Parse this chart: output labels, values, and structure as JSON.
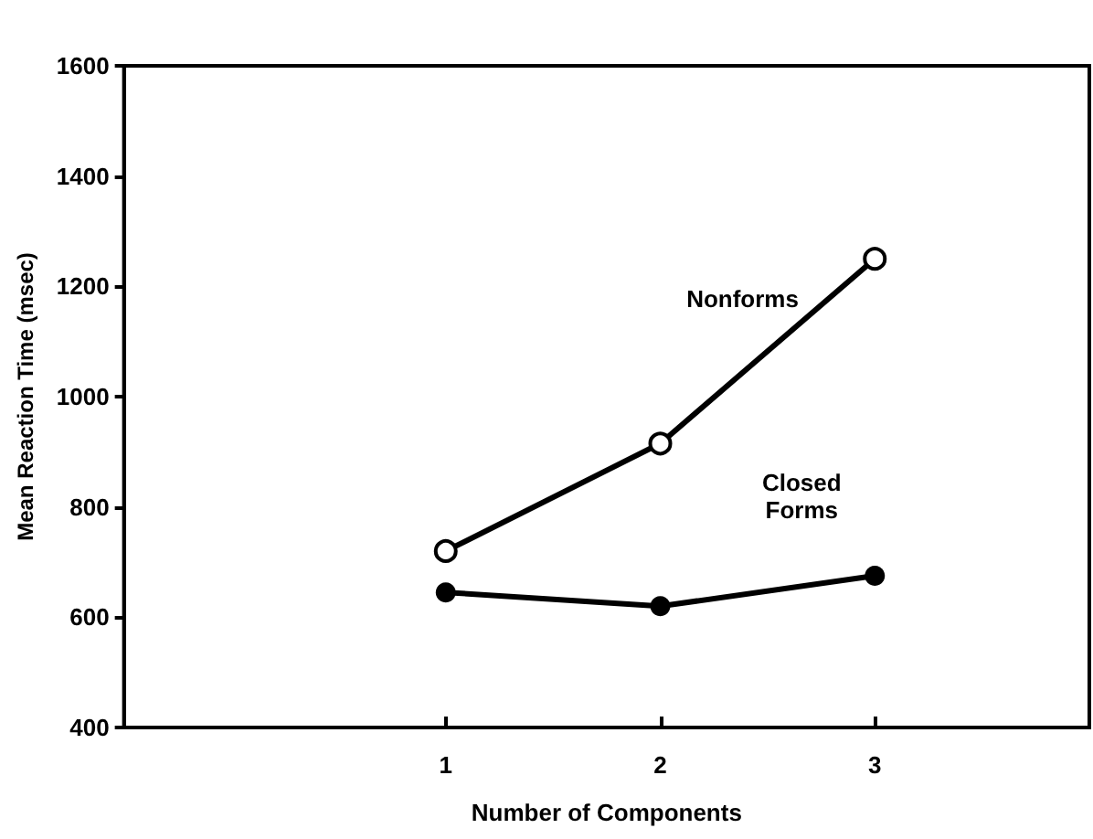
{
  "chart_data": {
    "type": "line",
    "xlabel": "Number of Components",
    "ylabel": "Mean Reaction Time (msec)",
    "x": [
      1,
      2,
      3
    ],
    "series": [
      {
        "name": "Nonforms",
        "color": "#000000",
        "values": [
          720,
          915,
          1250
        ]
      },
      {
        "name": "Closed\nForms",
        "color": "#000000",
        "values": [
          645,
          620,
          675
        ]
      }
    ],
    "xlim": [
      -0.5,
      4
    ],
    "xticks": [
      1,
      2,
      3
    ],
    "ylim": [
      400,
      1600
    ],
    "yticks": [
      400,
      600,
      800,
      1000,
      1200,
      1400,
      1600
    ],
    "grid": false,
    "marker": "circle",
    "line_style": "solid"
  }
}
